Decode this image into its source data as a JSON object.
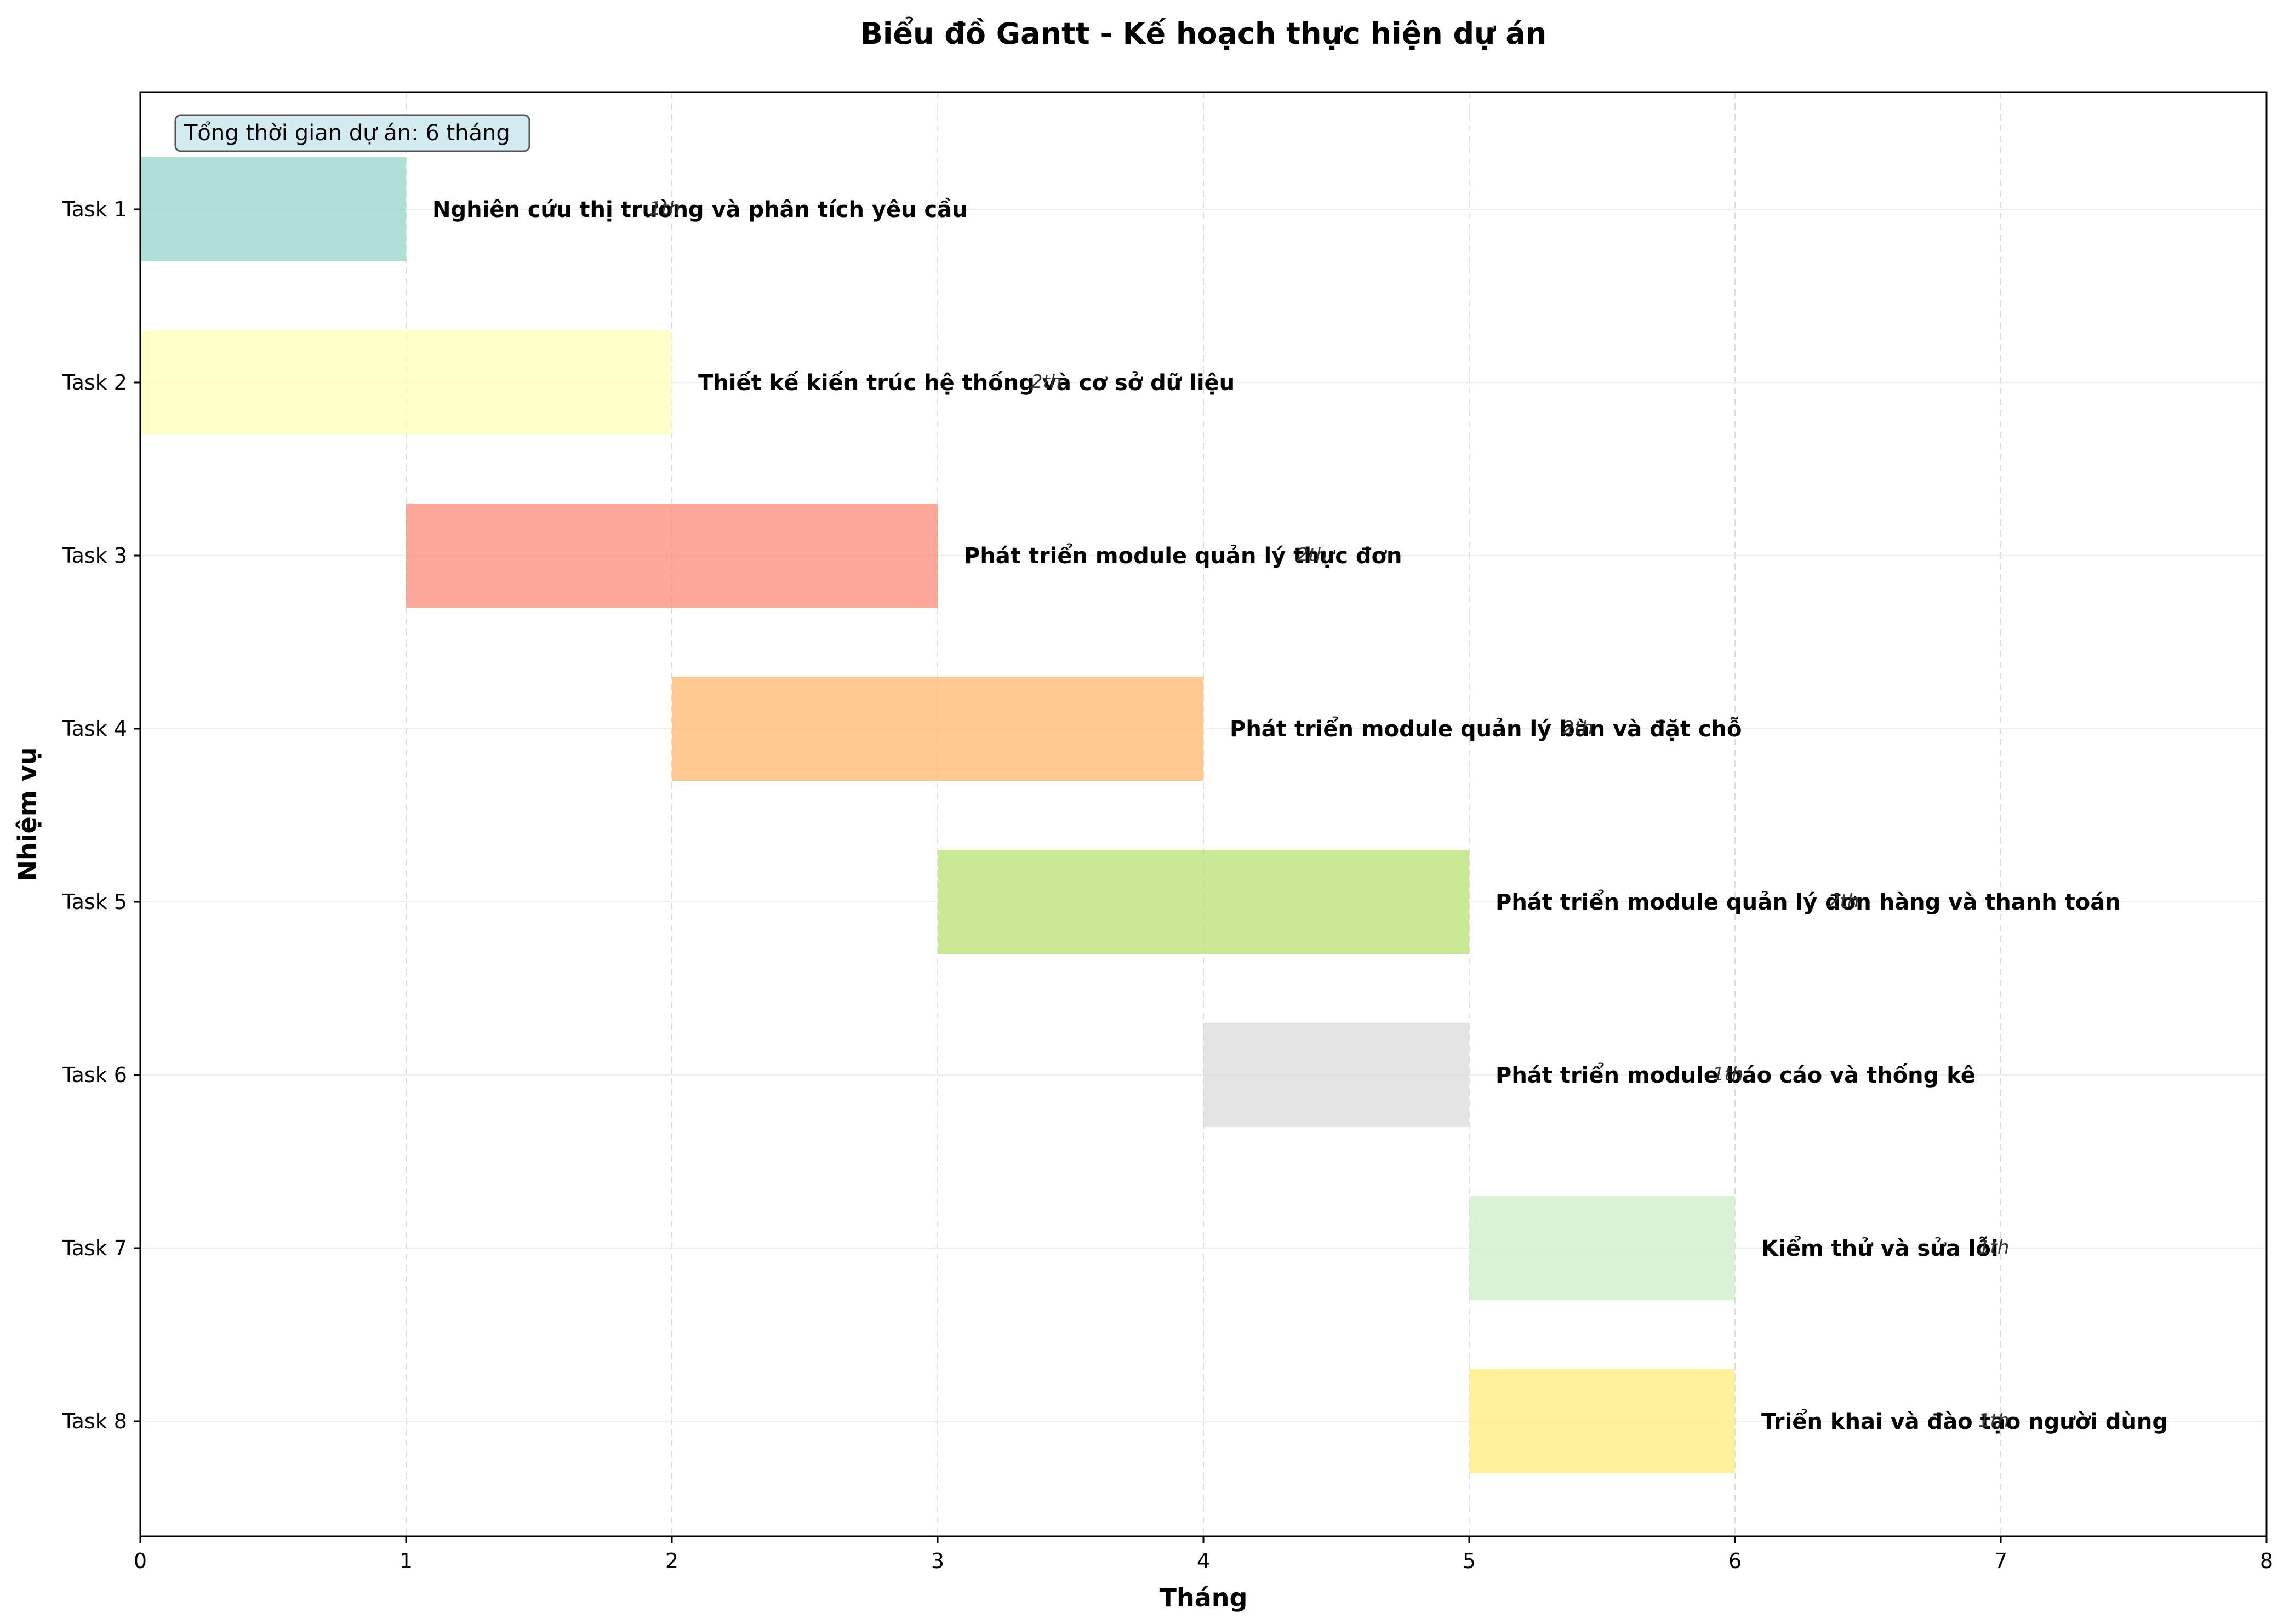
{
  "chart_data": {
    "type": "gantt",
    "title": "Biểu đồ Gantt - Kế hoạch thực hiện dự án",
    "xlabel": "Tháng",
    "ylabel": "Nhiệm vụ",
    "xlim": [
      0,
      8
    ],
    "x_ticks": [
      "0",
      "1",
      "2",
      "3",
      "4",
      "5",
      "6",
      "7",
      "8"
    ],
    "grid": true,
    "note": "Tổng thời gian dự án: 6 tháng",
    "tasks": [
      {
        "label": "Task 1",
        "name": "Nghiên cứu thị trường và phân tích yêu cầu",
        "start": 0,
        "end": 1,
        "duration_label": "1th",
        "color": "#8dd3c7"
      },
      {
        "label": "Task 2",
        "name": "Thiết kế kiến trúc hệ thống và cơ sở dữ liệu",
        "start": 0,
        "end": 2,
        "duration_label": "2th",
        "color": "#ffffb3"
      },
      {
        "label": "Task 3",
        "name": "Phát triển module quản lý thực đơn",
        "start": 1,
        "end": 3,
        "duration_label": "2th",
        "color": "#fb8072"
      },
      {
        "label": "Task 4",
        "name": "Phát triển module quản lý bàn và đặt chỗ",
        "start": 2,
        "end": 4,
        "duration_label": "2th",
        "color": "#fdb462"
      },
      {
        "label": "Task 5",
        "name": "Phát triển module quản lý đơn hàng và thanh toán",
        "start": 3,
        "end": 5,
        "duration_label": "2th",
        "color": "#b3de69"
      },
      {
        "label": "Task 6",
        "name": "Phát triển module báo cáo và thống kê",
        "start": 4,
        "end": 5,
        "duration_label": "1th",
        "color": "#d9d9d9"
      },
      {
        "label": "Task 7",
        "name": "Kiểm thử và sửa lỗi",
        "start": 5,
        "end": 6,
        "duration_label": "1th",
        "color": "#ccebc5"
      },
      {
        "label": "Task 8",
        "name": "Triển khai và đào tạo người dùng",
        "start": 5,
        "end": 6,
        "duration_label": "1th",
        "color": "#ffed6f"
      }
    ]
  }
}
